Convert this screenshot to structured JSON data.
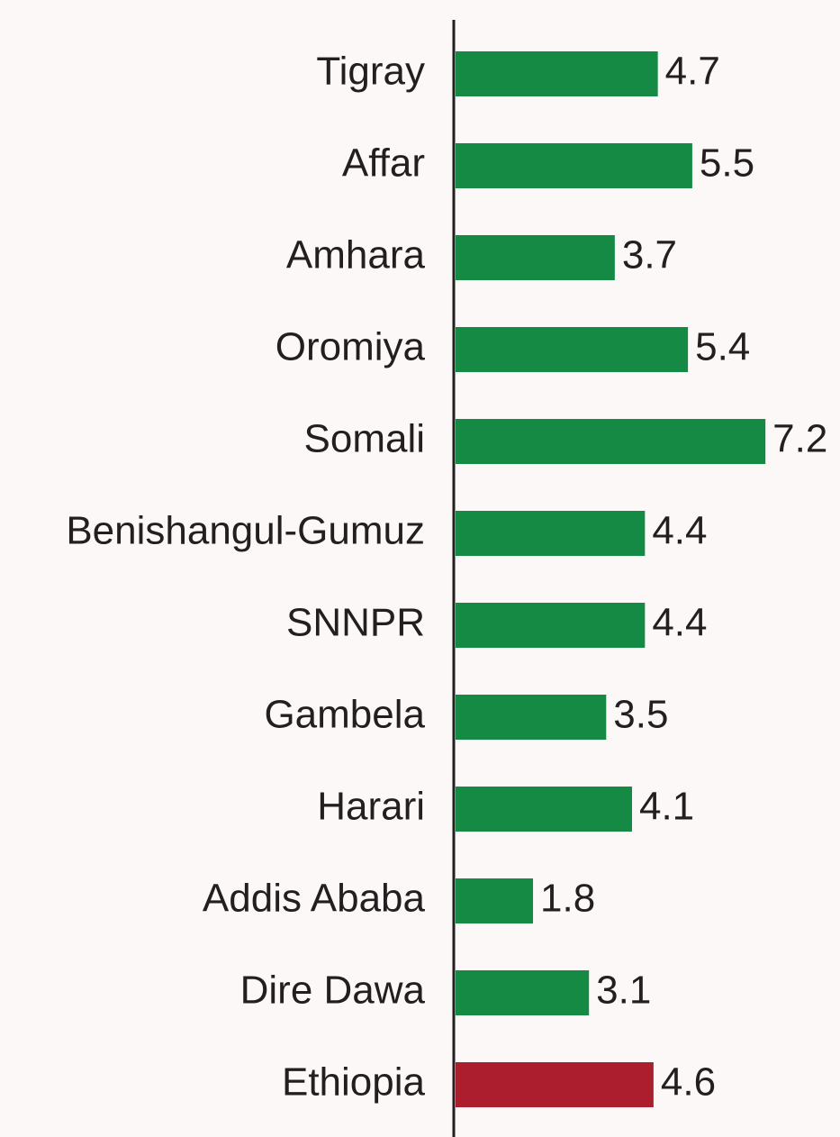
{
  "chart_data": {
    "type": "barh",
    "categories": [
      "Tigray",
      "Affar",
      "Amhara",
      "Oromiya",
      "Somali",
      "Benishangul-Gumuz",
      "SNNPR",
      "Gambela",
      "Harari",
      "Addis Ababa",
      "Dire Dawa",
      "Ethiopia"
    ],
    "values": [
      4.7,
      5.5,
      3.7,
      5.4,
      7.2,
      4.4,
      4.4,
      3.5,
      4.1,
      1.8,
      3.1,
      4.6
    ],
    "colors": [
      "#148a45",
      "#148a45",
      "#148a45",
      "#148a45",
      "#148a45",
      "#148a45",
      "#148a45",
      "#148a45",
      "#148a45",
      "#148a45",
      "#148a45",
      "#ac1e2d"
    ]
  }
}
